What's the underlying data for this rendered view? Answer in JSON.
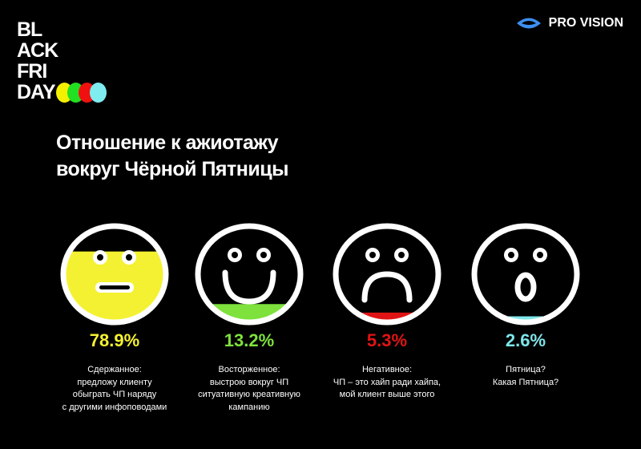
{
  "logo": {
    "lines": [
      "BL",
      "ACK",
      "FRI",
      "DAY"
    ],
    "dot_colors": [
      "#f4f100",
      "#22e022",
      "#f01010",
      "#7fecef"
    ]
  },
  "brand": {
    "name": "PRO VISION",
    "icon": "eye-icon",
    "color": "#4aa3ff"
  },
  "title": {
    "line1": "Отношение к ажиотажу",
    "line2": "вокруг Чёрной Пятницы"
  },
  "chart_data": {
    "type": "pie",
    "title": "Отношение к ажиотажу вокруг Чёрной Пятницы",
    "categories": [
      "Сдержанное",
      "Восторженное",
      "Негативное",
      "Пятница?"
    ],
    "values": [
      78.9,
      13.2,
      5.3,
      2.6
    ],
    "value_labels": [
      "78.9%",
      "13.2%",
      "5.3%",
      "2.6%"
    ],
    "colors": [
      "#f4f132",
      "#7ee13c",
      "#e01414",
      "#7fe6ea"
    ],
    "faces": [
      "neutral",
      "smile",
      "sad",
      "surprised"
    ],
    "descriptions": [
      "Сдержанное:\nпредложу клиенту\nобыграть ЧП наряду\nс другими инфоповодами",
      "Восторженное:\nвыстрою вокруг ЧП\nситуативную креативную\nкампанию",
      "Негативное:\nЧП – это хайп ради хайпа,\nмой клиент выше этого",
      "Пятница?\nКакая Пятница?"
    ]
  }
}
